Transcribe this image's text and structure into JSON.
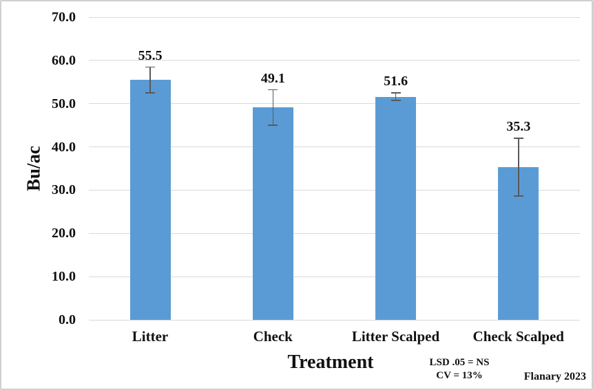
{
  "chart_data": {
    "type": "bar",
    "title": "",
    "categories": [
      "Litter",
      "Check",
      "Litter Scalped",
      "Check Scalped"
    ],
    "values": [
      55.5,
      49.1,
      51.6,
      35.3
    ],
    "value_labels": [
      "55.5",
      "49.1",
      "51.6",
      "35.3"
    ],
    "error_bars": [
      3.1,
      4.2,
      1.0,
      6.8
    ],
    "xlabel": "Treatment",
    "ylabel": "Bu/ac",
    "ylim": [
      0,
      70
    ],
    "ytick_step": 10,
    "ytick_decimals": 1,
    "grid": true,
    "legend_position": "none",
    "bar_color": "#5B9BD5",
    "grid_color": "#D9D9D9",
    "error_color": "#595959",
    "annotations": {
      "lsd": "LSD .05 = NS",
      "cv": "CV = 13%",
      "credit": "Flanary 2023"
    }
  }
}
